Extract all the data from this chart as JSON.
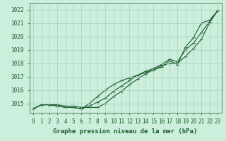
{
  "background_color": "#cceedd",
  "grid_color": "#aaccbb",
  "line_color": "#1a5c2a",
  "xlabel": "Graphe pression niveau de la mer (hPa)",
  "ylabel_ticks": [
    1015,
    1016,
    1017,
    1018,
    1019,
    1020,
    1021,
    1022
  ],
  "xlim": [
    -0.5,
    23.5
  ],
  "ylim": [
    1014.3,
    1022.5
  ],
  "x": [
    0,
    1,
    2,
    3,
    4,
    5,
    6,
    7,
    8,
    9,
    10,
    11,
    12,
    13,
    14,
    15,
    16,
    17,
    18,
    19,
    20,
    21,
    22,
    23
  ],
  "line1": [
    1014.6,
    1014.9,
    1014.9,
    1014.9,
    1014.8,
    1014.8,
    1014.7,
    1014.7,
    1014.7,
    1015.0,
    1015.5,
    1015.9,
    1016.4,
    1016.8,
    1017.2,
    1017.5,
    1017.8,
    1018.0,
    1018.0,
    1018.5,
    1019.1,
    1019.8,
    1021.0,
    1021.9
  ],
  "line2": [
    1014.6,
    1014.9,
    1014.9,
    1014.8,
    1014.7,
    1014.7,
    1014.6,
    1015.0,
    1015.5,
    1016.0,
    1016.4,
    1016.7,
    1016.9,
    1017.1,
    1017.3,
    1017.5,
    1017.7,
    1018.2,
    1017.9,
    1019.2,
    1019.9,
    1021.0,
    1021.2,
    1021.9
  ],
  "line3": [
    1014.6,
    1014.9,
    1014.9,
    1014.8,
    1014.7,
    1014.7,
    1014.6,
    1014.8,
    1015.1,
    1015.4,
    1015.9,
    1016.3,
    1016.7,
    1017.1,
    1017.4,
    1017.6,
    1017.9,
    1018.3,
    1018.1,
    1019.0,
    1019.5,
    1020.3,
    1021.1,
    1021.9
  ],
  "xtick_labels": [
    "0",
    "1",
    "2",
    "3",
    "4",
    "5",
    "6",
    "7",
    "8",
    "9",
    "10",
    "11",
    "12",
    "13",
    "14",
    "15",
    "16",
    "17",
    "18",
    "19",
    "20",
    "21",
    "22",
    "23"
  ],
  "marker": "+",
  "markersize": 3.5,
  "linewidth": 0.8,
  "tick_fontsize": 5.5,
  "xlabel_fontsize": 6.5
}
